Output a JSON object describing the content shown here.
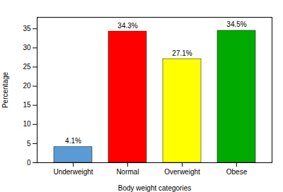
{
  "chart_data": {
    "type": "bar",
    "categories": [
      "Underweight",
      "Normal",
      "Overweight",
      "Obese"
    ],
    "values": [
      4.1,
      34.3,
      27.1,
      34.5
    ],
    "value_labels": [
      "4.1%",
      "34.3%",
      "27.1%",
      "34.5%"
    ],
    "colors": [
      "#5b9bd5",
      "#ff0000",
      "#ffff00",
      "#00aa00"
    ],
    "xlabel": "Body weight categories",
    "ylabel": "Percentage",
    "ylim": [
      0,
      38
    ],
    "yticks": [
      0,
      5,
      10,
      15,
      20,
      25,
      30,
      35
    ],
    "grid": false,
    "data_labels": true
  }
}
